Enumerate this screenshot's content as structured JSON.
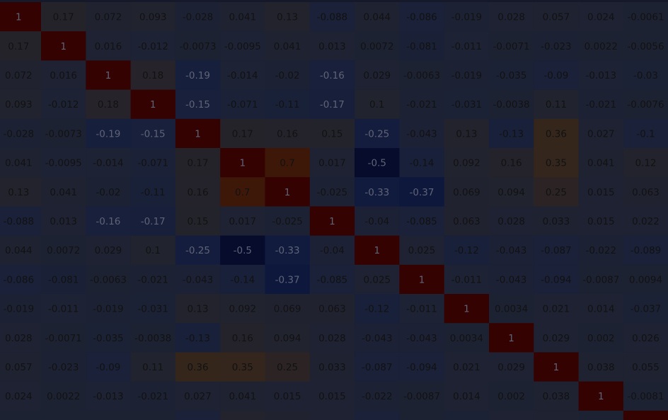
{
  "chart_data": {
    "type": "heatmap",
    "title": "",
    "xlabel": "",
    "ylabel": "",
    "colormap": {
      "min": -0.5,
      "max": 1,
      "stops": [
        {
          "v": -0.5,
          "color": "#070b2c"
        },
        {
          "v": -0.35,
          "color": "#0f1a3e"
        },
        {
          "v": -0.15,
          "color": "#18203b"
        },
        {
          "v": 0,
          "color": "#1d2233"
        },
        {
          "v": 0.15,
          "color": "#23232c"
        },
        {
          "v": 0.36,
          "color": "#35261c"
        },
        {
          "v": 0.7,
          "color": "#3d1808"
        },
        {
          "v": 1,
          "color": "#350202"
        }
      ]
    },
    "visible_columns": 15,
    "visible_rows": 14,
    "matrix": [
      [
        "1",
        "0.17",
        "0.072",
        "0.093",
        "-0.028",
        "0.041",
        "0.13",
        "-0.088",
        "0.044",
        "-0.086",
        "-0.019",
        "0.028",
        "0.057",
        "0.024",
        "-0.0061"
      ],
      [
        "0.17",
        "1",
        "0.016",
        "-0.012",
        "-0.0073",
        "-0.0095",
        "0.041",
        "0.013",
        "0.0072",
        "-0.081",
        "-0.011",
        "-0.0071",
        "-0.023",
        "0.0022",
        "-0.0056"
      ],
      [
        "0.072",
        "0.016",
        "1",
        "0.18",
        "-0.19",
        "-0.014",
        "-0.02",
        "-0.16",
        "0.029",
        "-0.0063",
        "-0.019",
        "-0.035",
        "-0.09",
        "-0.013",
        "-0.03"
      ],
      [
        "0.093",
        "-0.012",
        "0.18",
        "1",
        "-0.15",
        "-0.071",
        "-0.11",
        "-0.17",
        "0.1",
        "-0.021",
        "-0.031",
        "-0.0038",
        "0.11",
        "-0.021",
        "-0.0076"
      ],
      [
        "-0.028",
        "-0.0073",
        "-0.19",
        "-0.15",
        "1",
        "0.17",
        "0.16",
        "0.15",
        "-0.25",
        "-0.043",
        "0.13",
        "-0.13",
        "0.36",
        "0.027",
        "-0.1"
      ],
      [
        "0.041",
        "-0.0095",
        "-0.014",
        "-0.071",
        "0.17",
        "1",
        "0.7",
        "0.017",
        "-0.5",
        "-0.14",
        "0.092",
        "0.16",
        "0.35",
        "0.041",
        "0.12"
      ],
      [
        "0.13",
        "0.041",
        "-0.02",
        "-0.11",
        "0.16",
        "0.7",
        "1",
        "-0.025",
        "-0.33",
        "-0.37",
        "0.069",
        "0.094",
        "0.25",
        "0.015",
        "0.063"
      ],
      [
        "-0.088",
        "0.013",
        "-0.16",
        "-0.17",
        "0.15",
        "0.017",
        "-0.025",
        "1",
        "-0.04",
        "-0.085",
        "0.063",
        "0.028",
        "0.033",
        "0.015",
        "0.022"
      ],
      [
        "0.044",
        "0.0072",
        "0.029",
        "0.1",
        "-0.25",
        "-0.5",
        "-0.33",
        "-0.04",
        "1",
        "0.025",
        "-0.12",
        "-0.043",
        "-0.087",
        "-0.022",
        "-0.089"
      ],
      [
        "-0.086",
        "-0.081",
        "-0.0063",
        "-0.021",
        "-0.043",
        "-0.14",
        "-0.37",
        "-0.085",
        "0.025",
        "1",
        "-0.011",
        "-0.043",
        "-0.094",
        "-0.0087",
        "0.0094"
      ],
      [
        "-0.019",
        "-0.011",
        "-0.019",
        "-0.031",
        "0.13",
        "0.092",
        "0.069",
        "0.063",
        "-0.12",
        "-0.011",
        "1",
        "0.0034",
        "0.021",
        "0.014",
        "-0.037"
      ],
      [
        "0.028",
        "-0.0071",
        "-0.035",
        "-0.0038",
        "-0.13",
        "0.16",
        "0.094",
        "0.028",
        "-0.043",
        "-0.043",
        "0.0034",
        "1",
        "0.029",
        "0.002",
        "0.026"
      ],
      [
        "0.057",
        "-0.023",
        "-0.09",
        "0.11",
        "0.36",
        "0.35",
        "0.25",
        "0.033",
        "-0.087",
        "-0.094",
        "0.021",
        "0.029",
        "1",
        "0.038",
        "0.055"
      ],
      [
        "0.024",
        "0.0022",
        "-0.013",
        "-0.021",
        "0.027",
        "0.041",
        "0.015",
        "0.015",
        "-0.022",
        "-0.0087",
        "0.014",
        "0.002",
        "0.038",
        "1",
        "-0.0081"
      ]
    ]
  }
}
